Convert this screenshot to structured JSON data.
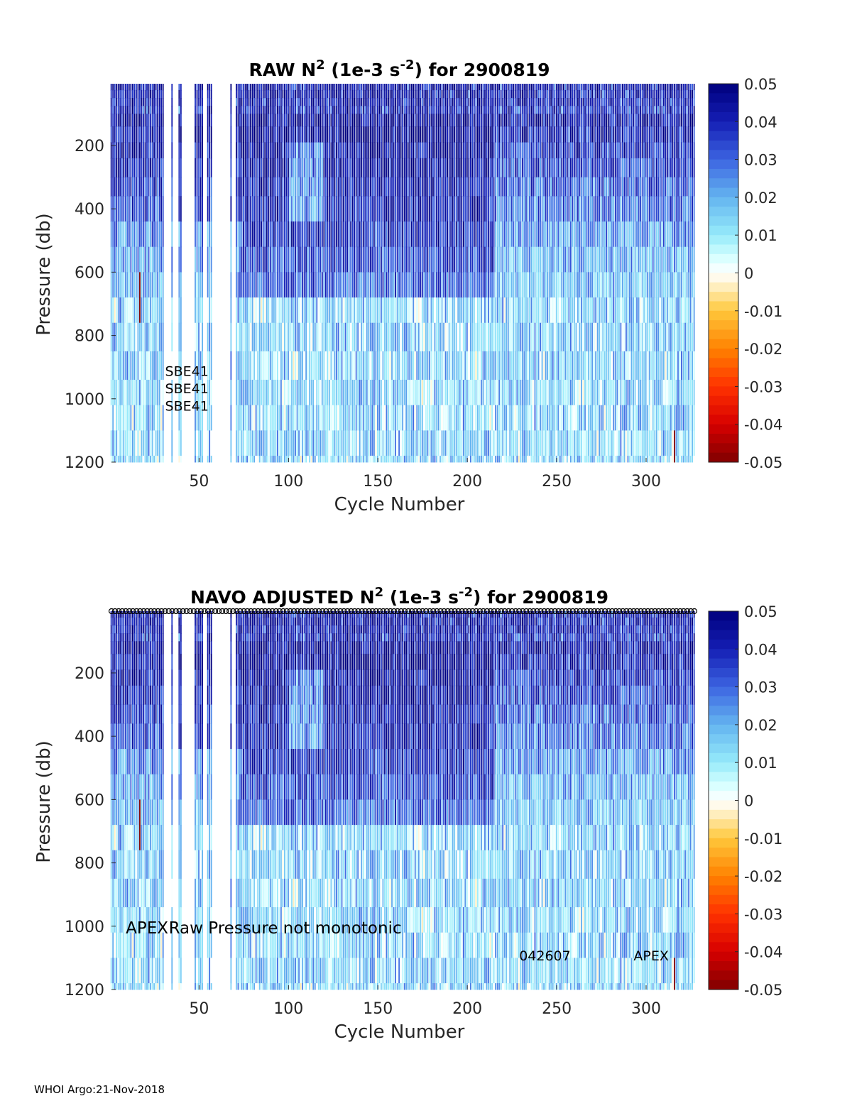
{
  "footer": "WHOI Argo:21-Nov-2018",
  "chart_data": [
    {
      "type": "heatmap",
      "title_parts": [
        "RAW N",
        "2",
        " (1e-3 s",
        "-2",
        ") for 2900819"
      ],
      "xlabel": "Cycle Number",
      "ylabel": "Pressure (db)",
      "xlim": [
        1,
        327
      ],
      "ylim": [
        1200,
        5
      ],
      "xticks": [
        50,
        100,
        150,
        200,
        250,
        300
      ],
      "yticks": [
        200,
        400,
        600,
        800,
        1000,
        1200
      ],
      "colorbar": {
        "range": [
          -0.05,
          0.05
        ],
        "ticks": [
          "0.05",
          "0.04",
          "0.03",
          "0.02",
          "0.01",
          "0",
          "-0.01",
          "-0.02",
          "-0.03",
          "-0.04",
          "-0.05"
        ]
      },
      "annotations": [
        {
          "text": "SBE41",
          "cycle": 31,
          "pressure": 910
        },
        {
          "text": "SBE41",
          "cycle": 31,
          "pressure": 965
        },
        {
          "text": "SBE41",
          "cycle": 31,
          "pressure": 1020
        }
      ],
      "gap_cycles": [
        31,
        32,
        33,
        34,
        36,
        37,
        38,
        41,
        42,
        43,
        44,
        45,
        46,
        47,
        53,
        54,
        58,
        59,
        60,
        61,
        62,
        63,
        64,
        65,
        66,
        67,
        69,
        70
      ],
      "notes": "Values approx. 0.03-0.05 above 400 db, decreasing to ~0.005-0.01 near 1200 db; cycles ~75-210 strongest; isolated negative (~-0.05) values near cycle 17 (600-750 db) and cycle 316 (1100-1200 db)."
    },
    {
      "type": "heatmap",
      "title_parts": [
        "NAVO  ADJUSTED N",
        "2",
        " (1e-3 s",
        "-2",
        ") for 2900819"
      ],
      "xlabel": "Cycle Number",
      "ylabel": "Pressure (db)",
      "xlim": [
        1,
        327
      ],
      "ylim": [
        1200,
        5
      ],
      "xticks": [
        50,
        100,
        150,
        200,
        250,
        300
      ],
      "yticks": [
        200,
        400,
        600,
        800,
        1000,
        1200
      ],
      "colorbar": {
        "range": [
          -0.05,
          0.05
        ],
        "ticks": [
          "0.05",
          "0.04",
          "0.03",
          "0.02",
          "0.01",
          "0",
          "-0.01",
          "-0.02",
          "-0.03",
          "-0.04",
          "-0.05"
        ]
      },
      "annotations": [
        {
          "text": "APEX",
          "cycle": 9,
          "pressure": 1005,
          "size": "large"
        },
        {
          "text": "Raw Pressure not monotonic",
          "cycle": 33,
          "pressure": 1005,
          "size": "large"
        },
        {
          "text": "042607",
          "cycle": 229,
          "pressure": 1090
        },
        {
          "text": "APEX",
          "cycle": 293,
          "pressure": 1090
        }
      ],
      "gap_cycles": [
        31,
        32,
        33,
        34,
        36,
        37,
        38,
        41,
        42,
        43,
        44,
        45,
        46,
        47,
        53,
        54,
        58,
        59,
        60,
        61,
        62,
        63,
        64,
        65,
        66,
        67,
        69,
        70
      ],
      "notes": "Same field as RAW panel; a row of black circle markers at the top of the axes for every cycle."
    }
  ]
}
